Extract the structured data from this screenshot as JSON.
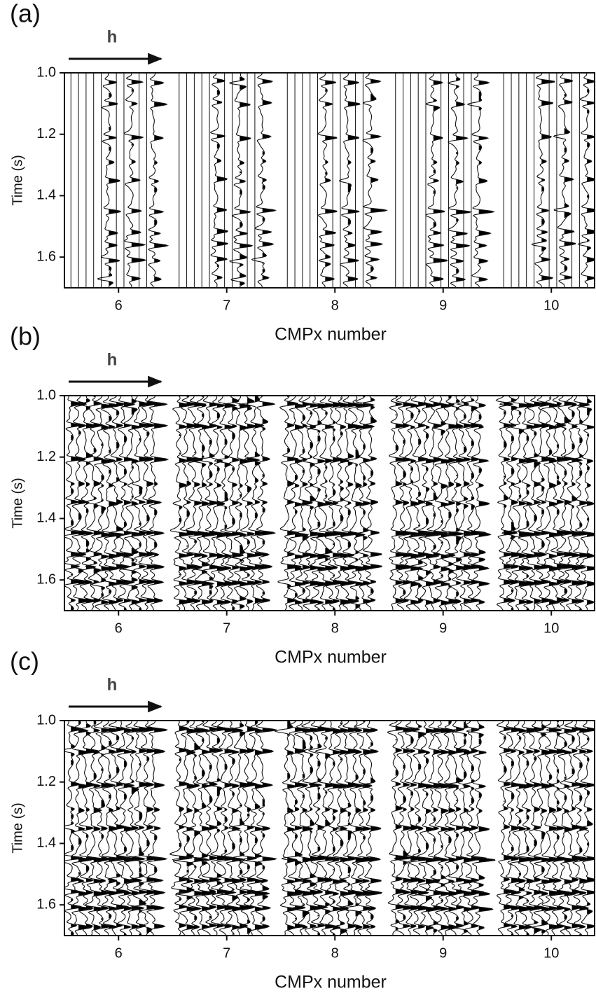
{
  "chart_data": [
    {
      "type": "wiggle",
      "panel_label": "(a)",
      "annotation": "h",
      "xlabel": "CMPx number",
      "ylabel": "Time (s)",
      "xlim": [
        5.5,
        10.4
      ],
      "xticks": [
        6,
        7,
        8,
        9,
        10
      ],
      "ylim": [
        1.0,
        1.7
      ],
      "y_inverted": true,
      "yticks": [
        {
          "value": 1.0,
          "label": "1.0"
        },
        1.2,
        1.4,
        1.6
      ],
      "sparse": true
    },
    {
      "type": "wiggle",
      "panel_label": "(b)",
      "annotation": "h",
      "xlabel": "CMPx number",
      "ylabel": "Time (s)",
      "xlim": [
        5.5,
        10.4
      ],
      "xticks": [
        6,
        7,
        8,
        9,
        10
      ],
      "ylim": [
        1.0,
        1.7
      ],
      "y_inverted": true,
      "yticks": [
        {
          "value": 1.0,
          "label": "1.0"
        },
        1.2,
        1.4,
        1.6
      ],
      "sparse": false
    },
    {
      "type": "wiggle",
      "panel_label": "(c)",
      "annotation": "h",
      "xlabel": "CMPx number",
      "ylabel": "Time (s)",
      "xlim": [
        5.5,
        10.4
      ],
      "xticks": [
        6,
        7,
        8,
        9,
        10
      ],
      "ylim": [
        1.0,
        1.7
      ],
      "y_inverted": true,
      "yticks": [
        {
          "value": 1.0,
          "label": "1.0"
        },
        1.2,
        1.4,
        1.6
      ],
      "sparse": false
    }
  ]
}
